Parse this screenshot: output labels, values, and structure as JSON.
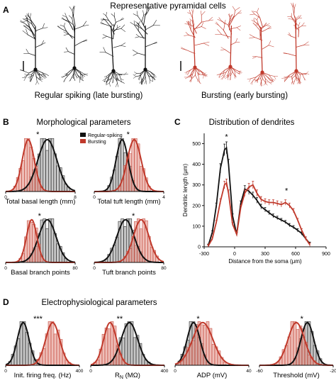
{
  "panels": {
    "A": {
      "letter": "A",
      "title": "Representative pyramidal cells",
      "left_caption": "Regular spiking (late bursting)",
      "right_caption": "Bursting (early bursting)"
    },
    "B": {
      "letter": "B",
      "title": "Morphological parameters"
    },
    "C": {
      "letter": "C",
      "title": "Distribution of dendrites"
    },
    "D": {
      "letter": "D",
      "title": "Electrophysiological parameters"
    }
  },
  "colors": {
    "regular": "#111111",
    "bursting": "#c0392b",
    "regular_bar": "#9a9a9a",
    "bursting_bar": "#e08a80"
  },
  "chart_data": [
    {
      "id": "basal-length",
      "type": "bar",
      "xlabel": "Total basal length (mm)",
      "ticks": [
        "0",
        "8"
      ],
      "xlim": [
        0,
        8
      ],
      "sig": "*",
      "legend": [
        {
          "name": "Regular-spiking",
          "color": "#111111"
        },
        {
          "name": "Bursting",
          "color": "#c0392b"
        }
      ],
      "series": [
        {
          "name": "Regular-spiking",
          "mean": 4.8,
          "sd": 1.1
        },
        {
          "name": "Bursting",
          "mean": 2.6,
          "sd": 0.7
        }
      ]
    },
    {
      "id": "tuft-length",
      "type": "bar",
      "xlabel": "Total tuft length (mm)",
      "ticks": [
        "0",
        "4"
      ],
      "xlim": [
        0,
        4
      ],
      "sig": "*",
      "series": [
        {
          "name": "Regular-spiking",
          "mean": 1.6,
          "sd": 0.35
        },
        {
          "name": "Bursting",
          "mean": 2.3,
          "sd": 0.4
        }
      ]
    },
    {
      "id": "basal-branch",
      "type": "bar",
      "xlabel": "Basal branch points",
      "ticks": [
        "0",
        "80"
      ],
      "xlim": [
        0,
        80
      ],
      "sig": "*",
      "series": [
        {
          "name": "Regular-spiking",
          "mean": 48,
          "sd": 10
        },
        {
          "name": "Bursting",
          "mean": 30,
          "sd": 6
        }
      ]
    },
    {
      "id": "tuft-branch",
      "type": "bar",
      "xlabel": "Tuft branch points",
      "ticks": [
        "0",
        "80"
      ],
      "xlim": [
        0,
        80
      ],
      "sig": "*",
      "series": [
        {
          "name": "Regular-spiking",
          "mean": 36,
          "sd": 10
        },
        {
          "name": "Bursting",
          "mean": 54,
          "sd": 9
        }
      ]
    },
    {
      "id": "dendrite-distribution",
      "type": "line",
      "xlabel": "Distance from the soma (μm)",
      "ylabel": "Dendritic length (μm)",
      "xlim": [
        -300,
        900
      ],
      "ylim": [
        0,
        550
      ],
      "xticks": [
        "-300",
        "0",
        "300",
        "600",
        "900"
      ],
      "yticks": [
        "0",
        "100",
        "200",
        "300",
        "400",
        "500"
      ],
      "annotations": [
        {
          "text": "*",
          "x": -80,
          "y": 520
        },
        {
          "text": "*",
          "x": 510,
          "y": 260
        }
      ],
      "x": [
        -260,
        -220,
        -180,
        -140,
        -100,
        -80,
        -60,
        -20,
        20,
        60,
        100,
        140,
        180,
        220,
        260,
        300,
        340,
        380,
        420,
        460,
        500,
        540,
        580,
        620,
        660,
        700,
        740
      ],
      "series": [
        {
          "name": "Regular-spiking",
          "values": [
            5,
            70,
            200,
            380,
            470,
            480,
            400,
            150,
            60,
            210,
            280,
            270,
            250,
            225,
            195,
            180,
            165,
            150,
            140,
            130,
            120,
            105,
            95,
            80,
            65,
            40,
            15
          ]
        },
        {
          "name": "Bursting",
          "values": [
            3,
            40,
            120,
            220,
            300,
            310,
            260,
            110,
            60,
            190,
            260,
            290,
            300,
            260,
            230,
            220,
            215,
            215,
            210,
            205,
            215,
            200,
            175,
            130,
            80,
            40,
            10
          ]
        }
      ]
    },
    {
      "id": "firing-freq",
      "type": "bar",
      "xlabel": "Init. firing freq. (Hz)",
      "ticks": [
        "0",
        "400"
      ],
      "xlim": [
        0,
        400
      ],
      "sig": "***",
      "series": [
        {
          "name": "Regular-spiking",
          "mean": 95,
          "sd": 32
        },
        {
          "name": "Bursting",
          "mean": 255,
          "sd": 38
        }
      ]
    },
    {
      "id": "rn",
      "type": "bar",
      "xlabel": "R",
      "xlabel_sub": "N",
      "xlabel_unit": "(MΩ)",
      "ticks": [
        "0",
        "400"
      ],
      "xlim": [
        0,
        400
      ],
      "sig": "**",
      "series": [
        {
          "name": "Regular-spiking",
          "mean": 210,
          "sd": 45
        },
        {
          "name": "Bursting",
          "mean": 105,
          "sd": 35
        }
      ]
    },
    {
      "id": "adp",
      "type": "bar",
      "xlabel": "ADP (mV)",
      "ticks": [
        "0",
        "40"
      ],
      "xlim": [
        0,
        40
      ],
      "sig": "*",
      "series": [
        {
          "name": "Regular-spiking",
          "mean": 10,
          "sd": 3.5
        },
        {
          "name": "Bursting",
          "mean": 15,
          "sd": 5.5
        }
      ]
    },
    {
      "id": "threshold",
      "type": "bar",
      "xlabel": "Threshold (mV)",
      "ticks": [
        "-60",
        "-20"
      ],
      "xlim": [
        -60,
        -20
      ],
      "sig": "*",
      "series": [
        {
          "name": "Regular-spiking",
          "mean": -34,
          "sd": 3.5
        },
        {
          "name": "Bursting",
          "mean": -40,
          "sd": 4.5
        }
      ]
    }
  ]
}
